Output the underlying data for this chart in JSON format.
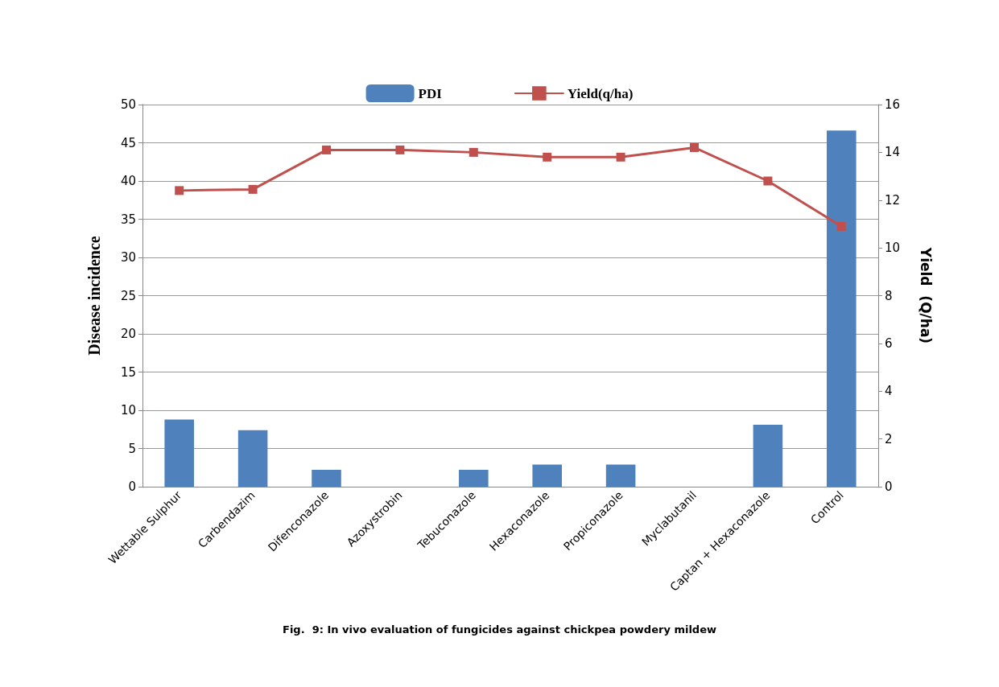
{
  "chart_data": {
    "type": "bar",
    "title": "Fig.  9: In vivo evaluation of fungicides against chickpea powdery mildew",
    "ylabel": "Disease incidence",
    "y2label": "Yield  (Q/ha)",
    "categories": [
      "Wettable Sulphur",
      "Carbendazim",
      "Difenconazole",
      "Azoxystrobin",
      "Tebuconazole",
      "Hexaconazole",
      "Propiconazole",
      "Myclabutanil",
      "Captan + Hexaconazole",
      "Control"
    ],
    "series": [
      {
        "name": "PDI",
        "color": "#4f81bd",
        "values": [
          8.8,
          7.4,
          2.2,
          0,
          2.2,
          2.9,
          2.9,
          0,
          8.1,
          46.6
        ]
      },
      {
        "name": "Yield(q/ha)",
        "type": "line",
        "axis": "y2",
        "color": "#c0504d",
        "marker": "square",
        "line_style": "solid",
        "values": [
          12.4,
          12.45,
          14.1,
          14.1,
          14.0,
          13.8,
          13.8,
          14.2,
          12.8,
          10.9
        ]
      }
    ],
    "ylim": [
      0,
      50
    ],
    "yticks": [
      0,
      5,
      10,
      15,
      20,
      25,
      30,
      35,
      40,
      45,
      50
    ],
    "y2lim": [
      0,
      16
    ],
    "y2ticks": [
      0,
      2,
      4,
      6,
      8,
      10,
      12,
      14,
      16
    ],
    "grid": "y",
    "legend": "top"
  }
}
